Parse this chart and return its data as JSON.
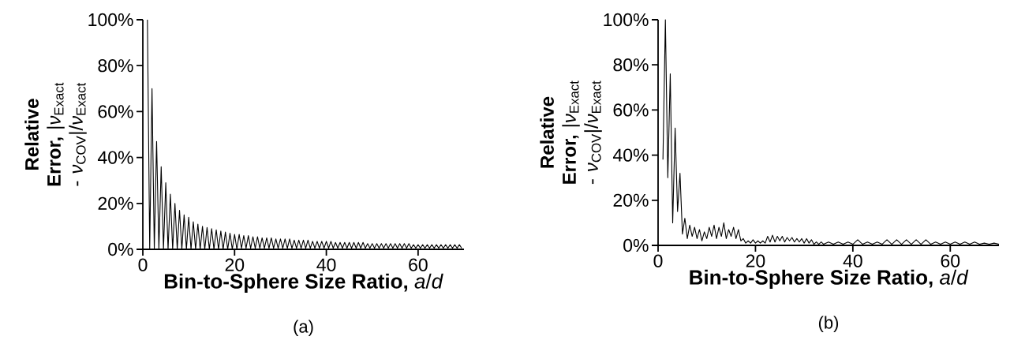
{
  "chart_data": [
    {
      "type": "line",
      "title": "(a)",
      "xlabel": "**Bin-to-Sphere Size Ratio,** *a*/*d*",
      "ylabel": "**Relative Error,** |*ν*$_{Exact}$ - *ν*$_{COV}$|/*ν*$_{Exact}$",
      "xlim": [
        0,
        70
      ],
      "ylim": [
        0,
        100
      ],
      "xticks": [
        0,
        20,
        40,
        60
      ],
      "yticks": [
        {
          "value": 0,
          "label": "0%"
        },
        {
          "value": 20,
          "label": "20%"
        },
        {
          "value": 40,
          "label": "40%"
        },
        {
          "value": 60,
          "label": "60%"
        },
        {
          "value": 80,
          "label": "80%"
        },
        {
          "value": 100,
          "label": "100%"
        }
      ],
      "marker": "none",
      "line_style": "solid",
      "series": [
        {
          "color": "#000000",
          "x": [
            1,
            1.5,
            2,
            2.5,
            3,
            3.5,
            4,
            4.5,
            5,
            5.5,
            6,
            6.5,
            7,
            7.5,
            8,
            8.5,
            9,
            9.5,
            10,
            10.5,
            11,
            11.5,
            12,
            12.5,
            13,
            13.5,
            14,
            14.5,
            15,
            15.5,
            16,
            16.5,
            17,
            17.5,
            18,
            18.5,
            19,
            19.5,
            20,
            20.5,
            21,
            21.5,
            22,
            22.5,
            23,
            23.5,
            24,
            24.5,
            25,
            25.5,
            26,
            26.5,
            27,
            27.5,
            28,
            28.5,
            29,
            29.5,
            30,
            30.5,
            31,
            31.5,
            32,
            32.5,
            33,
            33.5,
            34,
            34.5,
            35,
            35.5,
            36,
            36.5,
            37,
            37.5,
            38,
            38.5,
            39,
            39.5,
            40,
            40.5,
            41,
            41.5,
            42,
            42.5,
            43,
            43.5,
            44,
            44.5,
            45,
            45.5,
            46,
            46.5,
            47,
            47.5,
            48,
            48.5,
            49,
            49.5,
            50,
            50.5,
            51,
            51.5,
            52,
            52.5,
            53,
            53.5,
            54,
            54.5,
            55,
            55.5,
            56,
            56.5,
            57,
            57.5,
            58,
            58.5,
            59,
            59.5,
            60,
            60.5,
            61,
            61.5,
            62,
            62.5,
            63,
            63.5,
            64,
            64.5,
            65,
            65.5,
            66,
            66.5,
            67,
            67.5,
            68,
            68.5,
            69,
            69.5
          ],
          "values": [
            100,
            0,
            70,
            0,
            47,
            0,
            36,
            0,
            29,
            0,
            24,
            0,
            20,
            0,
            17,
            0,
            15,
            0,
            14,
            0,
            12,
            0,
            11,
            0,
            10,
            0,
            9.5,
            0,
            9,
            0,
            8.5,
            0,
            8,
            0,
            7.5,
            0,
            7,
            0,
            6.5,
            0,
            6.5,
            0.5,
            6,
            0.5,
            6,
            0.5,
            5.5,
            0.5,
            5.5,
            0.5,
            5,
            0.5,
            5,
            0.5,
            5,
            0.5,
            4.5,
            0.5,
            4.5,
            0.5,
            4.5,
            0.5,
            4.5,
            0.5,
            4,
            0.5,
            4,
            0.5,
            4,
            0.5,
            4,
            0.5,
            3.5,
            0.5,
            3.5,
            0.5,
            3.5,
            0.5,
            3.5,
            0.5,
            3.5,
            0.5,
            3,
            0.5,
            3,
            0.5,
            3,
            0.5,
            3,
            0.5,
            3,
            0.5,
            3,
            0.5,
            3,
            0.5,
            2.5,
            0.5,
            2.5,
            0.5,
            2.5,
            0.5,
            2.5,
            0.5,
            2.5,
            0.5,
            2.5,
            0.5,
            2.5,
            0.5,
            2.5,
            0.5,
            2.5,
            0.5,
            2.5,
            0.5,
            2,
            0.5,
            2,
            0.5,
            2,
            0.5,
            2,
            0.5,
            2,
            0.5,
            2,
            0.5,
            2,
            0.5,
            2,
            0.5,
            2,
            0.5,
            2,
            0.5,
            2,
            0.5
          ]
        }
      ]
    },
    {
      "type": "line",
      "title": "(b)",
      "xlabel": "**Bin-to-Sphere Size Ratio,** *a*/*d*",
      "ylabel": "**Relative Error,** |*ν*$_{Exact}$ - *ν*$_{COV}$|/*ν*$_{Exact}$",
      "xlim": [
        0,
        70
      ],
      "ylim": [
        0,
        100
      ],
      "xticks": [
        0,
        20,
        40,
        60
      ],
      "yticks": [
        {
          "value": 0,
          "label": "0%"
        },
        {
          "value": 20,
          "label": "20%"
        },
        {
          "value": 40,
          "label": "40%"
        },
        {
          "value": 60,
          "label": "60%"
        },
        {
          "value": 80,
          "label": "80%"
        },
        {
          "value": 100,
          "label": "100%"
        }
      ],
      "marker": "none",
      "line_style": "solid",
      "series": [
        {
          "color": "#000000",
          "x": [
            1,
            1.5,
            2,
            2.5,
            3,
            3.5,
            4,
            4.5,
            5,
            5.5,
            6,
            6.5,
            7,
            7.5,
            8,
            8.5,
            9,
            9.5,
            10,
            10.5,
            11,
            11.5,
            12,
            12.5,
            13,
            13.5,
            14,
            14.5,
            15,
            15.5,
            16,
            16.5,
            17,
            17.5,
            18,
            18.5,
            19,
            19.5,
            20,
            20.5,
            21,
            21.5,
            22,
            22.5,
            23,
            23.5,
            24,
            24.5,
            25,
            25.5,
            26,
            26.5,
            27,
            27.5,
            28,
            28.5,
            29,
            29.5,
            30,
            30.5,
            31,
            31.5,
            32,
            32.5,
            33,
            33.5,
            34,
            35,
            36,
            37,
            38,
            39,
            40,
            41,
            42,
            43,
            44,
            45,
            46,
            47,
            48,
            49,
            50,
            51,
            52,
            53,
            54,
            55,
            56,
            57,
            58,
            59,
            60,
            61,
            62,
            63,
            64,
            65,
            66,
            67,
            68,
            69,
            70
          ],
          "values": [
            38,
            100,
            30,
            76,
            10,
            52,
            15,
            32,
            5,
            12,
            3,
            9,
            4,
            8,
            3,
            7,
            2,
            6,
            3,
            8,
            4,
            9,
            3,
            8,
            4,
            10,
            3,
            7,
            4,
            8,
            3,
            7,
            2,
            3,
            1,
            2,
            1,
            2.5,
            1,
            2,
            1,
            2,
            1,
            4,
            1.5,
            4.5,
            1.5,
            4,
            2,
            4,
            1.5,
            3.5,
            2,
            3.5,
            1.5,
            3,
            1.5,
            3,
            1,
            3,
            1,
            2.5,
            0.5,
            1.5,
            0.5,
            1.5,
            0.5,
            1.5,
            0.5,
            1.5,
            0.5,
            1.5,
            0.5,
            2.5,
            0.5,
            1.5,
            0.5,
            1.5,
            0.5,
            2.5,
            0.5,
            2.5,
            0.5,
            2.5,
            0.5,
            2.5,
            0.5,
            2.5,
            0.5,
            1.5,
            0.5,
            1.5,
            0.5,
            1.5,
            0.5,
            1.5,
            0.5,
            1.5,
            0.5,
            1,
            0.5,
            1,
            0.5
          ]
        }
      ]
    }
  ]
}
